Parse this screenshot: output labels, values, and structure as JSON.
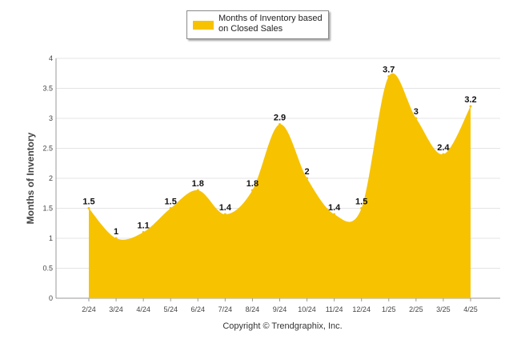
{
  "chart_data": {
    "type": "area",
    "categories": [
      "2/24",
      "3/24",
      "4/24",
      "5/24",
      "6/24",
      "7/24",
      "8/24",
      "9/24",
      "10/24",
      "11/24",
      "12/24",
      "1/25",
      "2/25",
      "3/25",
      "4/25"
    ],
    "series": [
      {
        "name": "Months of Inventory based on Closed Sales",
        "values": [
          1.5,
          1,
          1.1,
          1.5,
          1.8,
          1.4,
          1.8,
          2.9,
          2,
          1.4,
          1.5,
          3.7,
          3,
          2.4,
          3.2
        ],
        "data_labels": [
          "1.5",
          "1",
          "1.1",
          "1.5",
          "1.8",
          "1.4",
          "1.8",
          "2.9",
          "2",
          "1.4",
          "1.5",
          "3.7",
          "3",
          "2.4",
          "3.2"
        ]
      }
    ],
    "ylabel": "Months of Inventory",
    "xlabel": "",
    "ylim": [
      0,
      4
    ],
    "yticks": [
      "0",
      "0.5",
      "1",
      "1.5",
      "2",
      "2.5",
      "3",
      "3.5",
      "4"
    ],
    "grid": true,
    "legend_position": "top-center",
    "area_color": "#f7c200"
  },
  "footer": {
    "copyright": "Copyright © Trendgraphix, Inc."
  }
}
